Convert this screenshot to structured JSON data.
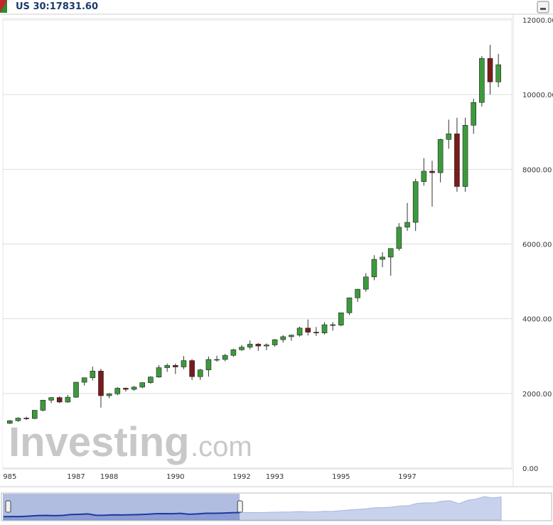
{
  "chart_data": {
    "type": "candlestick",
    "title": "US 30:17831.60",
    "categories": [
      "985",
      null,
      null,
      null,
      null,
      null,
      null,
      null,
      "1987",
      null,
      null,
      null,
      "1988",
      null,
      null,
      null,
      null,
      null,
      null,
      null,
      "1990",
      null,
      null,
      null,
      null,
      null,
      null,
      null,
      "1992",
      null,
      null,
      null,
      "1993",
      null,
      null,
      null,
      null,
      null,
      null,
      null,
      "1995",
      null,
      null,
      null,
      null,
      null,
      null,
      null,
      "1997",
      null,
      null,
      null,
      null,
      null,
      null,
      null,
      null,
      null,
      null,
      null
    ],
    "open": [
      1200,
      1270,
      1340,
      1330,
      1550,
      1820,
      1890,
      1770,
      1900,
      2300,
      2420,
      2600,
      1940,
      1990,
      2140,
      2110,
      2170,
      2290,
      2440,
      2690,
      2750,
      2710,
      2880,
      2450,
      2630,
      2910,
      2910,
      3020,
      3170,
      3240,
      3320,
      3270,
      3300,
      3440,
      3520,
      3560,
      3750,
      3640,
      3620,
      3840,
      3830,
      4160,
      4560,
      4790,
      5120,
      5590,
      5650,
      5880,
      6450,
      6580,
      7670,
      7950,
      7910,
      8800,
      8950,
      7540,
      9180,
      9790,
      10970,
      10340
    ],
    "high": [
      1290,
      1360,
      1380,
      1560,
      1830,
      1900,
      1920,
      1960,
      2310,
      2430,
      2720,
      2660,
      2010,
      2170,
      2160,
      2200,
      2300,
      2460,
      2760,
      2800,
      2800,
      3000,
      2920,
      2660,
      2990,
      3010,
      3060,
      3200,
      3300,
      3420,
      3350,
      3340,
      3460,
      3560,
      3580,
      3790,
      3980,
      3780,
      3910,
      3910,
      4160,
      4570,
      4800,
      5220,
      5700,
      5780,
      5890,
      6560,
      7100,
      7750,
      8300,
      8230,
      8820,
      9330,
      9380,
      9380,
      9890,
      11030,
      11330,
      11090
    ],
    "low": [
      1180,
      1240,
      1290,
      1310,
      1520,
      1740,
      1740,
      1750,
      1880,
      2210,
      2350,
      1620,
      1870,
      1950,
      2050,
      2070,
      2140,
      2260,
      2420,
      2580,
      2520,
      2650,
      2360,
      2360,
      2450,
      2850,
      2860,
      2980,
      3140,
      3180,
      3140,
      3160,
      3250,
      3360,
      3410,
      3520,
      3550,
      3540,
      3580,
      3680,
      3800,
      4100,
      4450,
      4720,
      5030,
      5380,
      5150,
      5820,
      6350,
      6350,
      7560,
      7000,
      7650,
      8550,
      7400,
      7400,
      8950,
      9680,
      10000,
      10200
    ],
    "close": [
      1270,
      1340,
      1330,
      1550,
      1820,
      1890,
      1770,
      1900,
      2300,
      2420,
      2600,
      1940,
      1990,
      2140,
      2110,
      2170,
      2290,
      2440,
      2690,
      2750,
      2710,
      2880,
      2450,
      2630,
      2910,
      2910,
      3020,
      3170,
      3240,
      3320,
      3270,
      3300,
      3440,
      3520,
      3560,
      3750,
      3640,
      3620,
      3840,
      3830,
      4160,
      4560,
      4790,
      5120,
      5590,
      5650,
      5880,
      6450,
      6580,
      7670,
      7950,
      7910,
      8800,
      8950,
      7540,
      9180,
      9790,
      10970,
      10340,
      10800
    ],
    "up_color": "#3c9a3c",
    "down_color": "#7a1a1a",
    "ylim": [
      0,
      12000
    ],
    "yticks": [
      {
        "value": 0,
        "label": "0.00"
      },
      {
        "value": 2000,
        "label": "2000.00"
      },
      {
        "value": 4000,
        "label": "4000.00"
      },
      {
        "value": 6000,
        "label": "6000.00"
      },
      {
        "value": 8000,
        "label": "8000.00"
      },
      {
        "value": 10000,
        "label": "10000.00"
      },
      {
        "value": 12000,
        "label": "12000.00"
      }
    ],
    "grid": true
  },
  "watermark": {
    "brand": "Investing",
    "suffix": ".com"
  }
}
